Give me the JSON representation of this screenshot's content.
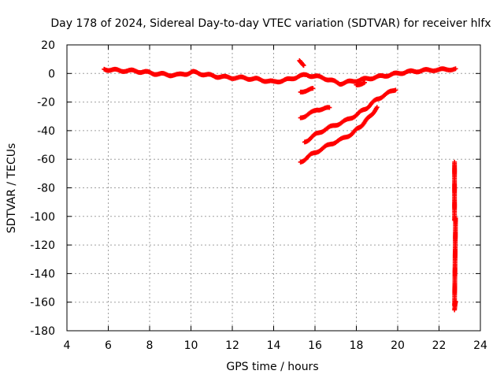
{
  "chart_data": {
    "type": "scatter",
    "title": "Day 178 of 2024, Sidereal Day-to-day VTEC variation (SDTVAR) for receiver hlfx",
    "xlabel": "GPS time / hours",
    "ylabel": "SDTVAR / TECUs",
    "xlim": [
      4,
      24
    ],
    "ylim": [
      -180,
      20
    ],
    "xticks": [
      4,
      6,
      8,
      10,
      12,
      14,
      16,
      18,
      20,
      22,
      24
    ],
    "yticks": [
      20,
      0,
      -20,
      -40,
      -60,
      -80,
      -100,
      -120,
      -140,
      -160,
      -180
    ],
    "grid": true,
    "marker_color": "#ff0000",
    "series": [
      {
        "name": "main-track",
        "points": [
          [
            5.8,
            3
          ],
          [
            6.2,
            2.5
          ],
          [
            6.6,
            2
          ],
          [
            7.0,
            2
          ],
          [
            7.4,
            1.5
          ],
          [
            7.8,
            1
          ],
          [
            8.2,
            0
          ],
          [
            8.6,
            -0.5
          ],
          [
            9.0,
            -1
          ],
          [
            9.4,
            -1
          ],
          [
            9.8,
            0
          ],
          [
            10.1,
            1
          ],
          [
            10.4,
            0
          ],
          [
            10.8,
            -1
          ],
          [
            11.2,
            -2
          ],
          [
            11.6,
            -2.5
          ],
          [
            12.0,
            -3
          ],
          [
            12.4,
            -3
          ],
          [
            12.8,
            -3.5
          ],
          [
            13.2,
            -4
          ],
          [
            13.6,
            -5
          ],
          [
            14.0,
            -6
          ],
          [
            14.4,
            -5
          ],
          [
            14.8,
            -4
          ],
          [
            15.2,
            -2
          ],
          [
            15.6,
            -1
          ],
          [
            16.0,
            -2
          ],
          [
            16.4,
            -3
          ],
          [
            16.8,
            -5
          ],
          [
            17.2,
            -7
          ],
          [
            17.6,
            -6
          ],
          [
            18.0,
            -5
          ],
          [
            18.4,
            -4
          ],
          [
            18.8,
            -3
          ],
          [
            19.2,
            -2
          ],
          [
            19.6,
            -1
          ],
          [
            20.0,
            0
          ],
          [
            20.4,
            1
          ],
          [
            20.8,
            1.5
          ],
          [
            21.2,
            2
          ],
          [
            21.6,
            2.5
          ],
          [
            22.0,
            2.5
          ],
          [
            22.4,
            3
          ],
          [
            22.8,
            3
          ]
        ]
      },
      {
        "name": "segment-a",
        "points": [
          [
            15.3,
            -62
          ],
          [
            15.8,
            -57
          ],
          [
            16.3,
            -53
          ],
          [
            16.8,
            -49
          ],
          [
            17.3,
            -46
          ],
          [
            17.8,
            -42
          ],
          [
            18.2,
            -37
          ],
          [
            18.6,
            -31
          ],
          [
            19.0,
            -24
          ]
        ]
      },
      {
        "name": "segment-b",
        "points": [
          [
            15.5,
            -48
          ],
          [
            16.0,
            -43
          ],
          [
            16.5,
            -39
          ],
          [
            17.0,
            -36
          ],
          [
            17.5,
            -33
          ],
          [
            18.0,
            -29
          ],
          [
            18.5,
            -24
          ],
          [
            19.0,
            -18
          ],
          [
            19.5,
            -14
          ],
          [
            19.9,
            -11
          ]
        ]
      },
      {
        "name": "segment-c",
        "points": [
          [
            15.3,
            -31
          ],
          [
            15.6,
            -29
          ],
          [
            15.9,
            -27
          ],
          [
            16.1,
            -25
          ],
          [
            16.4,
            -25
          ],
          [
            16.7,
            -24
          ]
        ]
      },
      {
        "name": "segment-d",
        "points": [
          [
            15.3,
            -13
          ],
          [
            15.5,
            -12
          ],
          [
            15.7,
            -11.5
          ],
          [
            15.9,
            -11
          ]
        ]
      },
      {
        "name": "segment-e",
        "points": [
          [
            15.25,
            9
          ],
          [
            15.35,
            8
          ],
          [
            15.45,
            6
          ]
        ]
      },
      {
        "name": "segment-f",
        "points": [
          [
            18.0,
            -8
          ],
          [
            18.2,
            -7
          ],
          [
            18.4,
            -6.5
          ]
        ]
      },
      {
        "name": "isolated-points",
        "points": [
          [
            22.75,
            -62
          ],
          [
            22.75,
            -102
          ],
          [
            22.8,
            -101
          ],
          [
            22.75,
            -162
          ],
          [
            22.8,
            -160
          ],
          [
            22.75,
            -165
          ]
        ]
      }
    ]
  }
}
